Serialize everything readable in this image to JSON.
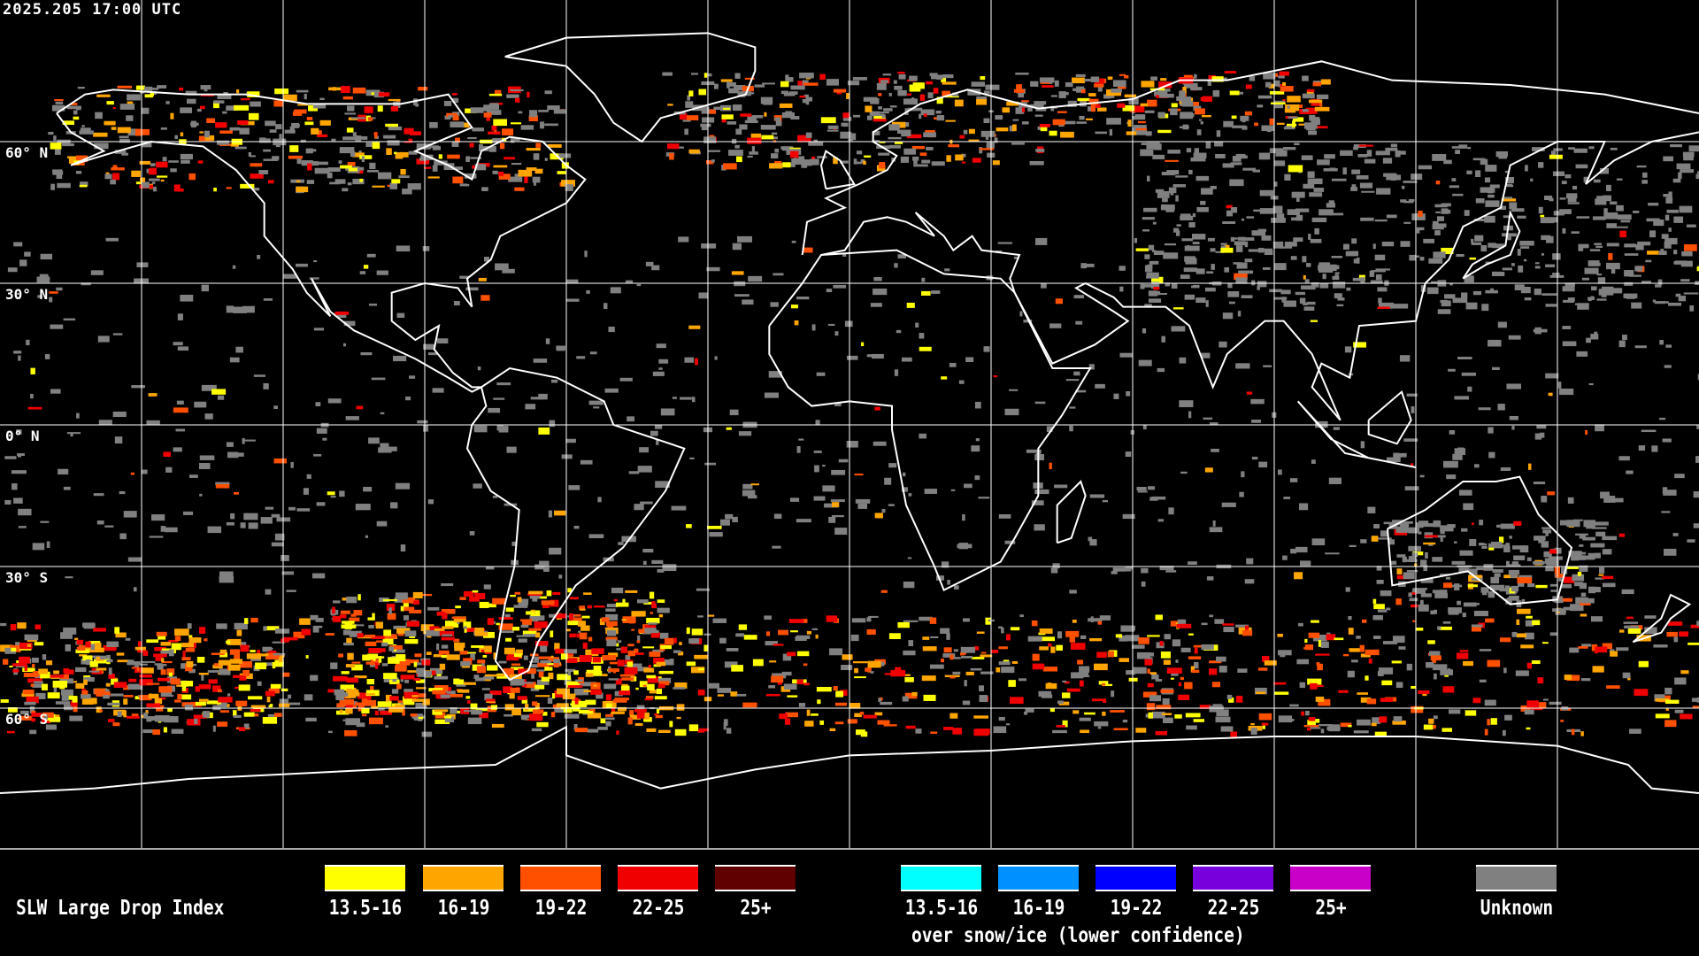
{
  "header": {
    "timestamp": "2025.205 17:00 UTC"
  },
  "map": {
    "projection": "equirectangular",
    "graticule_step_deg": 30,
    "lat_labels": [
      "60° N",
      "30° N",
      "0° N",
      "30° S",
      "60° S"
    ]
  },
  "legend": {
    "title": "SLW Large Drop Index",
    "categories": [
      {
        "label": "13.5-16",
        "color": "#ffff00"
      },
      {
        "label": "16-19",
        "color": "#ffa500"
      },
      {
        "label": "19-22",
        "color": "#ff5000"
      },
      {
        "label": "22-25",
        "color": "#f00000"
      },
      {
        "label": "25+",
        "color": "#600000"
      }
    ],
    "snow_categories": [
      {
        "label": "13.5-16",
        "color": "#00ffff"
      },
      {
        "label": "16-19",
        "color": "#0090ff"
      },
      {
        "label": "19-22",
        "color": "#0000ff"
      },
      {
        "label": "22-25",
        "color": "#7800dc"
      },
      {
        "label": "25+",
        "color": "#c800c8"
      }
    ],
    "snow_note": "over snow/ice (lower confidence)",
    "unknown": {
      "label": "Unknown",
      "color": "#808080"
    }
  }
}
